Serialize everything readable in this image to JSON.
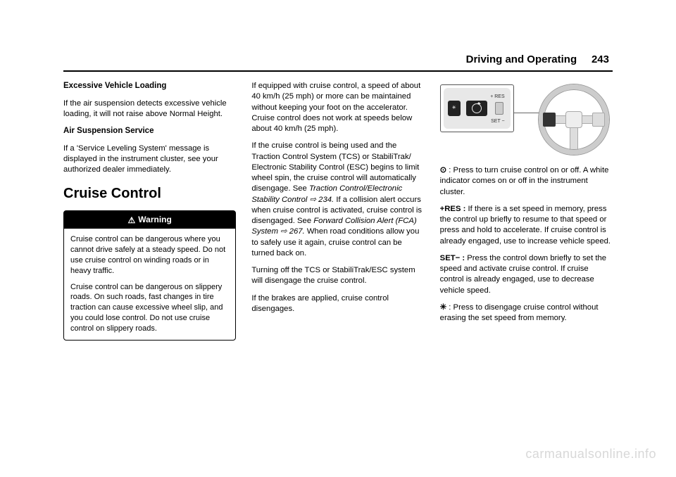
{
  "header": {
    "section": "Driving and Operating",
    "pageno": "243"
  },
  "col1": {
    "h1": "Excessive Vehicle Loading",
    "p1": "If the air suspension detects excessive vehicle loading, it will not raise above Normal Height.",
    "h2": "Air Suspension Service",
    "p2": "If a 'Service Leveling System' message is displayed in the instrument cluster, see your authorized dealer immediately.",
    "title": "Cruise Control",
    "warn_label": "Warning",
    "warn_p1": "Cruise control can be dangerous where you cannot drive safely at a steady speed. Do not use cruise control on winding roads or in heavy traffic.",
    "warn_p2": "Cruise control can be dangerous on slippery roads. On such roads, fast changes in tire traction can cause excessive wheel slip, and you could lose control. Do not use cruise control on slippery roads."
  },
  "col2": {
    "p1": "If equipped with cruise control, a speed of about 40 km/h (25 mph) or more can be maintained without keeping your foot on the accelerator. Cruise control does not work at speeds below about 40 km/h (25 mph).",
    "p2a": "If the cruise control is being used and the Traction Control System (TCS) or StabiliTrak/ Electronic Stability Control (ESC) begins to limit wheel spin, the cruise control will automatically disengage. See ",
    "p2_ref": "Traction Control/Electronic Stability Control ⇨ 234.",
    "p2b": "If a collision alert occurs when cruise control is activated, cruise control is disengaged. See ",
    "p2_ref2": "Forward Collision Alert (FCA) System ⇨ 267.",
    "p2c": " When road conditions allow you to safely use it again, cruise control can be turned back on.",
    "p3": "Turning off the TCS or StabiliTrak/ESC system will disengage the cruise control.",
    "p4": "If the brakes are applied, cruise control disengages."
  },
  "col3": {
    "zoom_res": "+ RES",
    "zoom_set": "SET −",
    "p1_sym": "⊙",
    "p1": " : Press to turn cruise control on or off. A white indicator comes on or off in the instrument cluster.",
    "p2_sym": "+RES :",
    "p2": " If there is a set speed in memory, press the control up briefly to resume to that speed or press and hold to accelerate. If cruise control is already engaged, use to increase vehicle speed.",
    "p3_sym": "SET− :",
    "p3": " Press the control down briefly to set the speed and activate cruise control. If cruise control is already engaged, use to decrease vehicle speed.",
    "p4_sym": "✳",
    "p4": " : Press to disengage cruise control without erasing the set speed from memory."
  },
  "watermark": "carmanualsonline.info"
}
